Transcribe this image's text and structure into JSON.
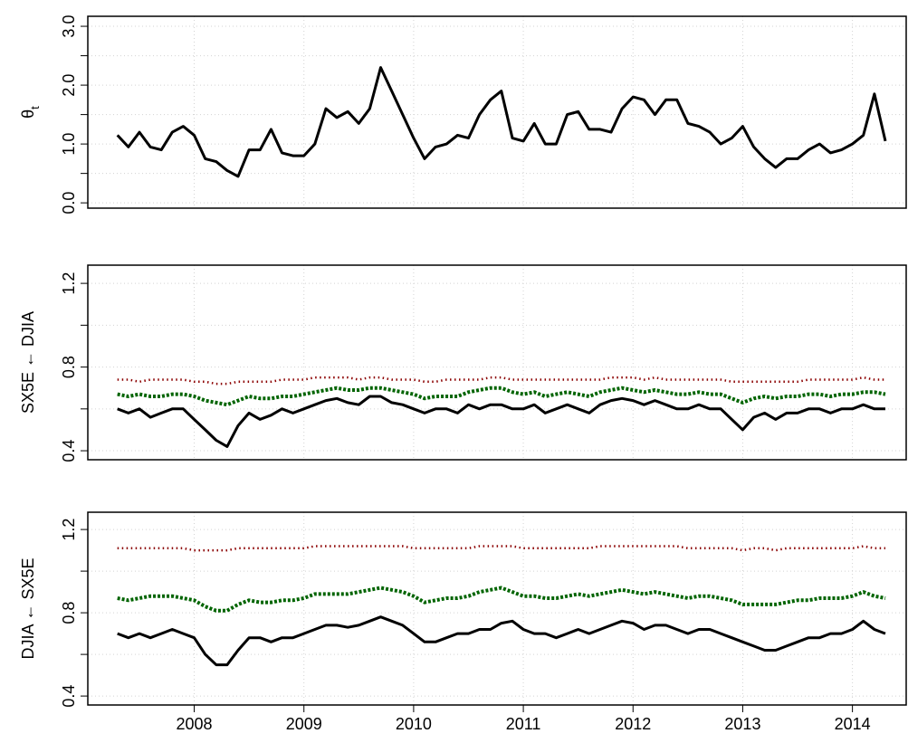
{
  "chart_data": [
    {
      "type": "line",
      "ylabel": "θ",
      "ylabel_subscript": "t",
      "xlim": [
        2007.03,
        2014.49
      ],
      "ylim": [
        -0.09,
        3.17
      ],
      "grid": true,
      "xaxis": false,
      "xticks": [
        2008,
        2009,
        2010,
        2011,
        2012,
        2013,
        2014
      ],
      "yticks": [
        {
          "value": 0,
          "label": "0.0"
        },
        {
          "value": 1,
          "label": "1.0"
        },
        {
          "value": 2,
          "label": "2.0"
        },
        {
          "value": 3,
          "label": "3.0"
        }
      ],
      "minor_yticks": [
        0.5,
        1.5,
        2.5
      ],
      "x": [
        2007.3,
        2007.4,
        2007.5,
        2007.6,
        2007.7,
        2007.8,
        2007.9,
        2008.0,
        2008.1,
        2008.2,
        2008.3,
        2008.4,
        2008.5,
        2008.6,
        2008.7,
        2008.8,
        2008.9,
        2009.0,
        2009.1,
        2009.2,
        2009.3,
        2009.4,
        2009.5,
        2009.6,
        2009.7,
        2009.8,
        2009.9,
        2010.0,
        2010.1,
        2010.2,
        2010.3,
        2010.4,
        2010.5,
        2010.6,
        2010.7,
        2010.8,
        2010.9,
        2011.0,
        2011.1,
        2011.2,
        2011.3,
        2011.4,
        2011.5,
        2011.6,
        2011.7,
        2011.8,
        2011.9,
        2012.0,
        2012.1,
        2012.2,
        2012.3,
        2012.4,
        2012.5,
        2012.6,
        2012.7,
        2012.8,
        2012.9,
        2013.0,
        2013.1,
        2013.2,
        2013.3,
        2013.4,
        2013.5,
        2013.6,
        2013.7,
        2013.8,
        2013.9,
        2014.0,
        2014.1,
        2014.2,
        2014.3
      ],
      "series": [
        {
          "color": "#000000",
          "style": "solid",
          "values": [
            1.15,
            0.95,
            1.2,
            0.95,
            0.9,
            1.2,
            1.3,
            1.15,
            0.75,
            0.7,
            0.55,
            0.45,
            0.9,
            0.9,
            1.25,
            0.85,
            0.8,
            0.8,
            1.0,
            1.6,
            1.45,
            1.55,
            1.35,
            1.6,
            2.3,
            1.9,
            1.5,
            1.1,
            0.75,
            0.95,
            1.0,
            1.15,
            1.1,
            1.5,
            1.75,
            1.9,
            1.1,
            1.05,
            1.35,
            1.0,
            1.0,
            1.5,
            1.55,
            1.25,
            1.25,
            1.2,
            1.6,
            1.8,
            1.75,
            1.5,
            1.75,
            1.75,
            1.35,
            1.3,
            1.2,
            1.0,
            1.1,
            1.3,
            0.95,
            0.75,
            0.6,
            0.75,
            0.75,
            0.9,
            1.0,
            0.85,
            0.9,
            1.0,
            1.15,
            1.85,
            1.05
          ]
        }
      ]
    },
    {
      "type": "line",
      "ylabel": "SX5E ← DJIA",
      "xlim": [
        2007.03,
        2014.49
      ],
      "ylim": [
        0.357,
        1.287
      ],
      "grid": true,
      "xaxis": false,
      "xticks": [
        2008,
        2009,
        2010,
        2011,
        2012,
        2013,
        2014
      ],
      "yticks": [
        0.4,
        0.8,
        1.2
      ],
      "minor_yticks": [
        0.6,
        1.0
      ],
      "x": [
        2007.3,
        2007.4,
        2007.5,
        2007.6,
        2007.7,
        2007.8,
        2007.9,
        2008.0,
        2008.1,
        2008.2,
        2008.3,
        2008.4,
        2008.5,
        2008.6,
        2008.7,
        2008.8,
        2008.9,
        2009.0,
        2009.1,
        2009.2,
        2009.3,
        2009.4,
        2009.5,
        2009.6,
        2009.7,
        2009.8,
        2009.9,
        2010.0,
        2010.1,
        2010.2,
        2010.3,
        2010.4,
        2010.5,
        2010.6,
        2010.7,
        2010.8,
        2010.9,
        2011.0,
        2011.1,
        2011.2,
        2011.3,
        2011.4,
        2011.5,
        2011.6,
        2011.7,
        2011.8,
        2011.9,
        2012.0,
        2012.1,
        2012.2,
        2012.3,
        2012.4,
        2012.5,
        2012.6,
        2012.7,
        2012.8,
        2012.9,
        2013.0,
        2013.1,
        2013.2,
        2013.3,
        2013.4,
        2013.5,
        2013.6,
        2013.7,
        2013.8,
        2013.9,
        2014.0,
        2014.1,
        2014.2,
        2014.3
      ],
      "series": [
        {
          "color": "#8b0000",
          "style": "dotted",
          "values": [
            0.74,
            0.74,
            0.73,
            0.74,
            0.74,
            0.74,
            0.74,
            0.73,
            0.73,
            0.72,
            0.72,
            0.73,
            0.73,
            0.73,
            0.73,
            0.74,
            0.74,
            0.74,
            0.75,
            0.75,
            0.75,
            0.75,
            0.74,
            0.75,
            0.75,
            0.74,
            0.74,
            0.74,
            0.73,
            0.73,
            0.74,
            0.74,
            0.74,
            0.74,
            0.75,
            0.75,
            0.74,
            0.74,
            0.74,
            0.74,
            0.74,
            0.74,
            0.74,
            0.74,
            0.74,
            0.75,
            0.75,
            0.75,
            0.74,
            0.75,
            0.74,
            0.74,
            0.74,
            0.74,
            0.74,
            0.74,
            0.73,
            0.73,
            0.73,
            0.73,
            0.73,
            0.73,
            0.73,
            0.74,
            0.74,
            0.74,
            0.74,
            0.74,
            0.75,
            0.74,
            0.74
          ]
        },
        {
          "color": "#006400",
          "style": "dashed",
          "values": [
            0.67,
            0.66,
            0.67,
            0.66,
            0.66,
            0.67,
            0.67,
            0.66,
            0.64,
            0.63,
            0.62,
            0.64,
            0.66,
            0.65,
            0.65,
            0.66,
            0.66,
            0.67,
            0.68,
            0.69,
            0.7,
            0.69,
            0.69,
            0.7,
            0.7,
            0.69,
            0.68,
            0.67,
            0.65,
            0.66,
            0.66,
            0.66,
            0.68,
            0.69,
            0.7,
            0.7,
            0.68,
            0.67,
            0.68,
            0.66,
            0.67,
            0.68,
            0.67,
            0.66,
            0.68,
            0.69,
            0.7,
            0.69,
            0.68,
            0.69,
            0.68,
            0.67,
            0.67,
            0.68,
            0.67,
            0.67,
            0.65,
            0.63,
            0.65,
            0.66,
            0.65,
            0.66,
            0.66,
            0.67,
            0.67,
            0.66,
            0.67,
            0.67,
            0.68,
            0.68,
            0.67
          ]
        },
        {
          "color": "#000000",
          "style": "solid",
          "values": [
            0.6,
            0.58,
            0.6,
            0.56,
            0.58,
            0.6,
            0.6,
            0.55,
            0.5,
            0.45,
            0.42,
            0.52,
            0.58,
            0.55,
            0.57,
            0.6,
            0.58,
            0.6,
            0.62,
            0.64,
            0.65,
            0.63,
            0.62,
            0.66,
            0.66,
            0.63,
            0.62,
            0.6,
            0.58,
            0.6,
            0.6,
            0.58,
            0.62,
            0.6,
            0.62,
            0.62,
            0.6,
            0.6,
            0.62,
            0.58,
            0.6,
            0.62,
            0.6,
            0.58,
            0.62,
            0.64,
            0.65,
            0.64,
            0.62,
            0.64,
            0.62,
            0.6,
            0.6,
            0.62,
            0.6,
            0.6,
            0.55,
            0.5,
            0.56,
            0.58,
            0.55,
            0.58,
            0.58,
            0.6,
            0.6,
            0.58,
            0.6,
            0.6,
            0.62,
            0.6,
            0.6
          ]
        }
      ]
    },
    {
      "type": "line",
      "ylabel": "DJIA ← SX5E",
      "xlim": [
        2007.03,
        2014.49
      ],
      "ylim": [
        0.357,
        1.283
      ],
      "grid": true,
      "xaxis": true,
      "xticks": [
        2008,
        2009,
        2010,
        2011,
        2012,
        2013,
        2014
      ],
      "yticks": [
        0.4,
        0.8,
        1.2
      ],
      "minor_yticks": [
        0.6,
        1.0
      ],
      "x": [
        2007.3,
        2007.4,
        2007.5,
        2007.6,
        2007.7,
        2007.8,
        2007.9,
        2008.0,
        2008.1,
        2008.2,
        2008.3,
        2008.4,
        2008.5,
        2008.6,
        2008.7,
        2008.8,
        2008.9,
        2009.0,
        2009.1,
        2009.2,
        2009.3,
        2009.4,
        2009.5,
        2009.6,
        2009.7,
        2009.8,
        2009.9,
        2010.0,
        2010.1,
        2010.2,
        2010.3,
        2010.4,
        2010.5,
        2010.6,
        2010.7,
        2010.8,
        2010.9,
        2011.0,
        2011.1,
        2011.2,
        2011.3,
        2011.4,
        2011.5,
        2011.6,
        2011.7,
        2011.8,
        2011.9,
        2012.0,
        2012.1,
        2012.2,
        2012.3,
        2012.4,
        2012.5,
        2012.6,
        2012.7,
        2012.8,
        2012.9,
        2013.0,
        2013.1,
        2013.2,
        2013.3,
        2013.4,
        2013.5,
        2013.6,
        2013.7,
        2013.8,
        2013.9,
        2014.0,
        2014.1,
        2014.2,
        2014.3
      ],
      "series": [
        {
          "color": "#8b0000",
          "style": "dotted",
          "values": [
            1.11,
            1.11,
            1.11,
            1.11,
            1.11,
            1.11,
            1.11,
            1.1,
            1.1,
            1.1,
            1.1,
            1.11,
            1.11,
            1.11,
            1.11,
            1.11,
            1.11,
            1.11,
            1.12,
            1.12,
            1.12,
            1.12,
            1.12,
            1.12,
            1.12,
            1.12,
            1.12,
            1.11,
            1.11,
            1.11,
            1.11,
            1.11,
            1.11,
            1.12,
            1.12,
            1.12,
            1.12,
            1.11,
            1.11,
            1.11,
            1.11,
            1.11,
            1.11,
            1.11,
            1.12,
            1.12,
            1.12,
            1.12,
            1.12,
            1.12,
            1.12,
            1.12,
            1.11,
            1.11,
            1.11,
            1.11,
            1.11,
            1.1,
            1.11,
            1.11,
            1.1,
            1.11,
            1.11,
            1.11,
            1.11,
            1.11,
            1.11,
            1.11,
            1.12,
            1.11,
            1.11
          ]
        },
        {
          "color": "#006400",
          "style": "dashed",
          "values": [
            0.87,
            0.86,
            0.87,
            0.88,
            0.88,
            0.88,
            0.87,
            0.86,
            0.83,
            0.81,
            0.81,
            0.84,
            0.86,
            0.85,
            0.85,
            0.86,
            0.86,
            0.87,
            0.89,
            0.89,
            0.89,
            0.89,
            0.9,
            0.91,
            0.92,
            0.91,
            0.9,
            0.88,
            0.85,
            0.86,
            0.87,
            0.87,
            0.88,
            0.9,
            0.91,
            0.92,
            0.9,
            0.88,
            0.88,
            0.87,
            0.87,
            0.88,
            0.89,
            0.88,
            0.89,
            0.9,
            0.91,
            0.9,
            0.89,
            0.9,
            0.89,
            0.88,
            0.87,
            0.88,
            0.88,
            0.87,
            0.86,
            0.84,
            0.84,
            0.84,
            0.84,
            0.85,
            0.86,
            0.86,
            0.87,
            0.87,
            0.87,
            0.88,
            0.9,
            0.88,
            0.87
          ]
        },
        {
          "color": "#000000",
          "style": "solid",
          "values": [
            0.7,
            0.68,
            0.7,
            0.68,
            0.7,
            0.72,
            0.7,
            0.68,
            0.6,
            0.55,
            0.55,
            0.62,
            0.68,
            0.68,
            0.66,
            0.68,
            0.68,
            0.7,
            0.72,
            0.74,
            0.74,
            0.73,
            0.74,
            0.76,
            0.78,
            0.76,
            0.74,
            0.7,
            0.66,
            0.66,
            0.68,
            0.7,
            0.7,
            0.72,
            0.72,
            0.75,
            0.76,
            0.72,
            0.7,
            0.7,
            0.68,
            0.7,
            0.72,
            0.7,
            0.72,
            0.74,
            0.76,
            0.75,
            0.72,
            0.74,
            0.74,
            0.72,
            0.7,
            0.72,
            0.72,
            0.7,
            0.68,
            0.66,
            0.64,
            0.62,
            0.62,
            0.64,
            0.66,
            0.68,
            0.68,
            0.7,
            0.7,
            0.72,
            0.76,
            0.72,
            0.7
          ]
        }
      ]
    }
  ]
}
